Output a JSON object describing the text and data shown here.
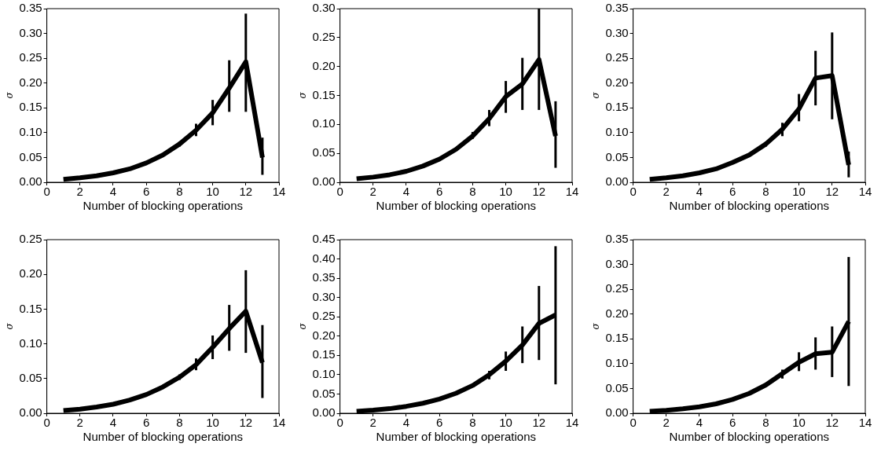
{
  "chart_data": [
    {
      "type": "line",
      "xlabel": "Number of blocking operations",
      "ylabel": "σ",
      "x": [
        1,
        2,
        3,
        4,
        5,
        6,
        7,
        8,
        9,
        10,
        11,
        12,
        13
      ],
      "xlim": [
        0,
        14
      ],
      "xticks": [
        0,
        2,
        4,
        6,
        8,
        10,
        12,
        14
      ],
      "ylim": [
        0,
        0.35
      ],
      "yticks": [
        {
          "value": 0,
          "label": "0.00"
        },
        {
          "value": 0.05,
          "label": "0.05"
        },
        {
          "value": 0.1,
          "label": "0.10"
        },
        {
          "value": 0.15,
          "label": "0.15"
        },
        {
          "value": 0.2,
          "label": "0.20"
        },
        {
          "value": 0.25,
          "label": "0.25"
        },
        {
          "value": 0.3,
          "label": "0.30"
        },
        {
          "value": 0.35,
          "label": "0.35"
        }
      ],
      "series": [
        {
          "color": "#000000",
          "values": [
            0.006,
            0.009,
            0.013,
            0.019,
            0.027,
            0.039,
            0.055,
            0.077,
            0.105,
            0.14,
            0.19,
            0.243,
            0.05
          ],
          "errors": [
            null,
            null,
            null,
            null,
            null,
            null,
            null,
            [
              0.072,
              0.082
            ],
            [
              0.093,
              0.118
            ],
            [
              0.115,
              0.166
            ],
            [
              0.142,
              0.246
            ],
            [
              0.142,
              0.34
            ],
            [
              0.015,
              0.09
            ]
          ]
        }
      ]
    },
    {
      "type": "line",
      "xlabel": "Number of blocking operations",
      "ylabel": "σ",
      "x": [
        1,
        2,
        3,
        4,
        5,
        6,
        7,
        8,
        9,
        10,
        11,
        12,
        13
      ],
      "xlim": [
        0,
        14
      ],
      "xticks": [
        0,
        2,
        4,
        6,
        8,
        10,
        12,
        14
      ],
      "ylim": [
        0,
        0.3
      ],
      "yticks": [
        {
          "value": 0,
          "label": "0.00"
        },
        {
          "value": 0.05,
          "label": "0.05"
        },
        {
          "value": 0.1,
          "label": "0.10"
        },
        {
          "value": 0.15,
          "label": "0.15"
        },
        {
          "value": 0.2,
          "label": "0.20"
        },
        {
          "value": 0.25,
          "label": "0.25"
        },
        {
          "value": 0.3,
          "label": "0.30"
        }
      ],
      "series": [
        {
          "color": "#000000",
          "values": [
            0.006,
            0.009,
            0.013,
            0.019,
            0.028,
            0.04,
            0.057,
            0.08,
            0.11,
            0.148,
            0.17,
            0.212,
            0.08
          ],
          "errors": [
            null,
            null,
            null,
            null,
            null,
            null,
            null,
            [
              0.075,
              0.087
            ],
            [
              0.097,
              0.125
            ],
            [
              0.12,
              0.175
            ],
            [
              0.125,
              0.215
            ],
            [
              0.125,
              0.3
            ],
            [
              0.025,
              0.14
            ]
          ]
        }
      ]
    },
    {
      "type": "line",
      "xlabel": "Number of blocking operations",
      "ylabel": "σ",
      "x": [
        1,
        2,
        3,
        4,
        5,
        6,
        7,
        8,
        9,
        10,
        11,
        12,
        13
      ],
      "xlim": [
        0,
        14
      ],
      "xticks": [
        0,
        2,
        4,
        6,
        8,
        10,
        12,
        14
      ],
      "ylim": [
        0,
        0.35
      ],
      "yticks": [
        {
          "value": 0,
          "label": "0.00"
        },
        {
          "value": 0.05,
          "label": "0.05"
        },
        {
          "value": 0.1,
          "label": "0.10"
        },
        {
          "value": 0.15,
          "label": "0.15"
        },
        {
          "value": 0.2,
          "label": "0.20"
        },
        {
          "value": 0.25,
          "label": "0.25"
        },
        {
          "value": 0.3,
          "label": "0.30"
        },
        {
          "value": 0.35,
          "label": "0.35"
        }
      ],
      "series": [
        {
          "color": "#000000",
          "values": [
            0.006,
            0.009,
            0.013,
            0.019,
            0.027,
            0.04,
            0.055,
            0.077,
            0.107,
            0.148,
            0.21,
            0.215,
            0.035
          ],
          "errors": [
            null,
            null,
            null,
            null,
            null,
            null,
            null,
            [
              0.072,
              0.082
            ],
            [
              0.093,
              0.12
            ],
            [
              0.123,
              0.178
            ],
            [
              0.155,
              0.265
            ],
            [
              0.127,
              0.302
            ],
            [
              0.01,
              0.062
            ]
          ]
        }
      ]
    },
    {
      "type": "line",
      "xlabel": "Number of blocking operations",
      "ylabel": "σ",
      "x": [
        1,
        2,
        3,
        4,
        5,
        6,
        7,
        8,
        9,
        10,
        11,
        12,
        13
      ],
      "xlim": [
        0,
        14
      ],
      "xticks": [
        0,
        2,
        4,
        6,
        8,
        10,
        12,
        14
      ],
      "ylim": [
        0,
        0.25
      ],
      "yticks": [
        {
          "value": 0,
          "label": "0.00"
        },
        {
          "value": 0.05,
          "label": "0.05"
        },
        {
          "value": 0.1,
          "label": "0.10"
        },
        {
          "value": 0.15,
          "label": "0.15"
        },
        {
          "value": 0.2,
          "label": "0.20"
        },
        {
          "value": 0.25,
          "label": "0.25"
        }
      ],
      "series": [
        {
          "color": "#000000",
          "values": [
            0.004,
            0.006,
            0.009,
            0.013,
            0.019,
            0.027,
            0.038,
            0.052,
            0.07,
            0.095,
            0.122,
            0.147,
            0.073
          ],
          "errors": [
            null,
            null,
            null,
            null,
            null,
            null,
            null,
            [
              0.048,
              0.056
            ],
            [
              0.062,
              0.079
            ],
            [
              0.078,
              0.112
            ],
            [
              0.09,
              0.156
            ],
            [
              0.087,
              0.206
            ],
            [
              0.022,
              0.127
            ]
          ]
        }
      ]
    },
    {
      "type": "line",
      "xlabel": "Number of blocking operations",
      "ylabel": "σ",
      "x": [
        1,
        2,
        3,
        4,
        5,
        6,
        7,
        8,
        9,
        10,
        11,
        12,
        13
      ],
      "xlim": [
        0,
        14
      ],
      "xticks": [
        0,
        2,
        4,
        6,
        8,
        10,
        12,
        14
      ],
      "ylim": [
        0,
        0.45
      ],
      "yticks": [
        {
          "value": 0,
          "label": "0.00"
        },
        {
          "value": 0.05,
          "label": "0.05"
        },
        {
          "value": 0.1,
          "label": "0.10"
        },
        {
          "value": 0.15,
          "label": "0.15"
        },
        {
          "value": 0.2,
          "label": "0.20"
        },
        {
          "value": 0.25,
          "label": "0.25"
        },
        {
          "value": 0.3,
          "label": "0.30"
        },
        {
          "value": 0.35,
          "label": "0.35"
        },
        {
          "value": 0.4,
          "label": "0.40"
        },
        {
          "value": 0.45,
          "label": "0.45"
        }
      ],
      "series": [
        {
          "color": "#000000",
          "values": [
            0.005,
            0.008,
            0.012,
            0.018,
            0.026,
            0.037,
            0.052,
            0.072,
            0.1,
            0.135,
            0.177,
            0.233,
            0.255
          ],
          "errors": [
            null,
            null,
            null,
            null,
            null,
            null,
            null,
            null,
            [
              0.088,
              0.11
            ],
            [
              0.11,
              0.16
            ],
            [
              0.13,
              0.225
            ],
            [
              0.138,
              0.33
            ],
            [
              0.075,
              0.433
            ]
          ]
        }
      ]
    },
    {
      "type": "line",
      "xlabel": "Number of blocking operations",
      "ylabel": "σ",
      "x": [
        1,
        2,
        3,
        4,
        5,
        6,
        7,
        8,
        9,
        10,
        11,
        12,
        13
      ],
      "xlim": [
        0,
        14
      ],
      "xticks": [
        0,
        2,
        4,
        6,
        8,
        10,
        12,
        14
      ],
      "ylim": [
        0,
        0.35
      ],
      "yticks": [
        {
          "value": 0,
          "label": "0.00"
        },
        {
          "value": 0.05,
          "label": "0.05"
        },
        {
          "value": 0.1,
          "label": "0.10"
        },
        {
          "value": 0.15,
          "label": "0.15"
        },
        {
          "value": 0.2,
          "label": "0.20"
        },
        {
          "value": 0.25,
          "label": "0.25"
        },
        {
          "value": 0.3,
          "label": "0.30"
        },
        {
          "value": 0.35,
          "label": "0.35"
        }
      ],
      "series": [
        {
          "color": "#000000",
          "values": [
            0.004,
            0.006,
            0.009,
            0.013,
            0.019,
            0.028,
            0.04,
            0.057,
            0.08,
            0.103,
            0.12,
            0.123,
            0.185
          ],
          "errors": [
            null,
            null,
            null,
            null,
            null,
            null,
            null,
            null,
            [
              0.07,
              0.088
            ],
            [
              0.085,
              0.123
            ],
            [
              0.088,
              0.153
            ],
            [
              0.073,
              0.175
            ],
            [
              0.055,
              0.315
            ]
          ]
        }
      ]
    }
  ]
}
